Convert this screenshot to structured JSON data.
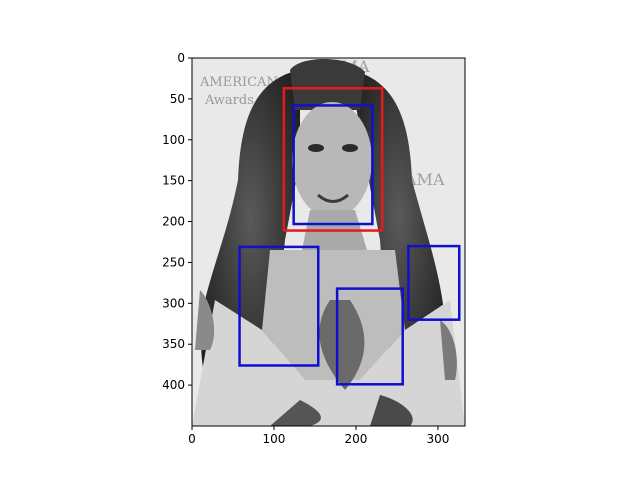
{
  "chart_data": {
    "type": "image-with-bounding-boxes",
    "title": "",
    "xlabel": "",
    "ylabel": "",
    "xlim": [
      0,
      333
    ],
    "ylim": [
      450,
      0
    ],
    "y_axis_inverted": true,
    "grid": false,
    "xticks": [
      0,
      100,
      200,
      300
    ],
    "yticks": [
      0,
      50,
      100,
      150,
      200,
      250,
      300,
      350,
      400
    ],
    "image": {
      "description_tag": "grayscale-portrait-photo",
      "extent": [
        0,
        333,
        450,
        0
      ]
    },
    "boxes": [
      {
        "color": "#e41a1c",
        "x0": 112,
        "y0": 37,
        "x1": 232,
        "y1": 211
      },
      {
        "color": "#1010cc",
        "x0": 124,
        "y0": 58,
        "x1": 220,
        "y1": 203
      },
      {
        "color": "#1010cc",
        "x0": 58,
        "y0": 231,
        "x1": 154,
        "y1": 376
      },
      {
        "color": "#1010cc",
        "x0": 177,
        "y0": 282,
        "x1": 257,
        "y1": 399
      },
      {
        "color": "#1010cc",
        "x0": 264,
        "y0": 230,
        "x1": 326,
        "y1": 320
      }
    ]
  }
}
